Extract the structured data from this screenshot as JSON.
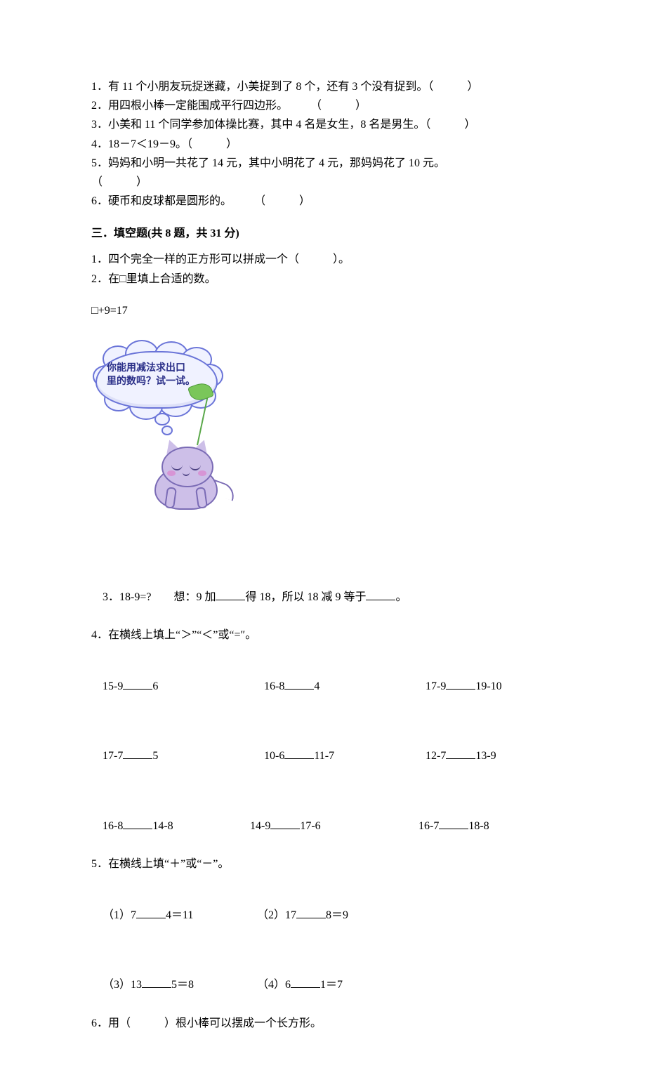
{
  "judge": {
    "q1": "1．有 11 个小朋友玩捉迷藏，小美捉到了 8 个，还有 3 个没有捉到。（　　　）",
    "q2": "2．用四根小棒一定能围成平行四边形。　　　（　　　）",
    "q3": "3．小美和 11 个同学参加体操比赛，其中 4 名是女生，8 名是男生。（　　　）",
    "q4": "4．18－7＜19－9。（　　　）",
    "q5a": "5．妈妈和小明一共花了 14 元，其中小明花了 4 元，那妈妈花了 10 元。",
    "q5b": "（　　　）",
    "q6": "6．硬币和皮球都是圆形的。　　　（　　　）"
  },
  "section3_title": "三．填空题(共 8 题，共 31 分)",
  "fill": {
    "q1": "1．四个完全一样的正方形可以拼成一个（　　　）。",
    "q2": "2．在□里填上合适的数。",
    "q2_eq": "□+9=17",
    "bubble_l1": "你能用减法求出口",
    "bubble_l2": "里的数吗？试一试。",
    "q3_a": "3．18-9=?　　想：9 加",
    "q3_b": "得 18，所以 18 减 9 等于",
    "q3_c": "。",
    "q4": "4．在横线上填上“＞”“＜”或“=″。",
    "row1": {
      "a": "15-9",
      "av": "6",
      "b": "16-8",
      "bv": "4",
      "c": "17-9",
      "cv": "19-10"
    },
    "row2": {
      "a": "17-7",
      "av": "5",
      "b": "10-6",
      "bv": "11-7",
      "c": "12-7",
      "cv": "13-9"
    },
    "row3": {
      "a": "16-8",
      "av": "14-8",
      "b": "14-9",
      "bv": "17-6",
      "c": "16-7",
      "cv": "18-8"
    },
    "q5": "5．在横线上填“＋”或“－”。",
    "q5r1a": "（1）7",
    "q5r1av": "4＝11",
    "q5r1b": "（2）17",
    "q5r1bv": "8＝9",
    "q5r2a": "（3）13",
    "q5r2av": "5＝8",
    "q5r2b": "（4）6",
    "q5r2bv": "1＝7",
    "q6": "6．用（　　　）根小棒可以摆成一个长方形。"
  },
  "style": {
    "blank_short": 42,
    "blank_mid": 42,
    "col1": 230,
    "col2": 230,
    "col3": 200
  }
}
